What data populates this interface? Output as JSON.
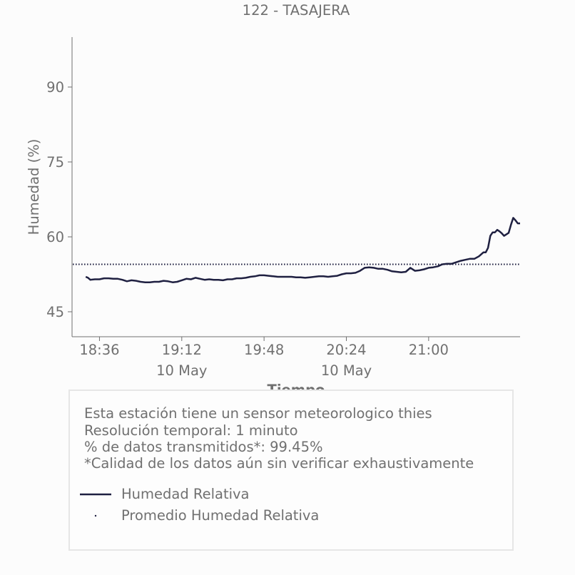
{
  "chart_data": {
    "type": "line",
    "title": "122 - TASAJERA",
    "xlabel": "Tiempo",
    "ylabel": "Humedad (%)",
    "ylim": [
      40,
      100
    ],
    "xlim": [
      "18:24",
      "21:40"
    ],
    "yticks": [
      45,
      60,
      75,
      90
    ],
    "xticks": [
      {
        "t": "18:36",
        "label": "18:36",
        "date": ""
      },
      {
        "t": "19:12",
        "label": "19:12",
        "date": "10 May"
      },
      {
        "t": "19:48",
        "label": "19:48",
        "date": ""
      },
      {
        "t": "20:24",
        "label": "20:24",
        "date": "10 May"
      },
      {
        "t": "21:00",
        "label": "21:00",
        "date": ""
      }
    ],
    "series": [
      {
        "name": "Humedad Relativa",
        "color": "#1f2041",
        "style": "solid",
        "points": [
          [
            "18:30",
            52.0
          ],
          [
            "18:31",
            51.8
          ],
          [
            "18:32",
            51.4
          ],
          [
            "18:34",
            51.5
          ],
          [
            "18:36",
            51.5
          ],
          [
            "18:38",
            51.7
          ],
          [
            "18:40",
            51.7
          ],
          [
            "18:42",
            51.6
          ],
          [
            "18:44",
            51.6
          ],
          [
            "18:46",
            51.4
          ],
          [
            "18:48",
            51.1
          ],
          [
            "18:50",
            51.3
          ],
          [
            "18:52",
            51.2
          ],
          [
            "18:54",
            51.0
          ],
          [
            "18:56",
            50.9
          ],
          [
            "18:58",
            50.9
          ],
          [
            "19:00",
            51.0
          ],
          [
            "19:02",
            51.0
          ],
          [
            "19:04",
            51.2
          ],
          [
            "19:06",
            51.1
          ],
          [
            "19:08",
            50.9
          ],
          [
            "19:10",
            51.0
          ],
          [
            "19:12",
            51.3
          ],
          [
            "19:14",
            51.6
          ],
          [
            "19:16",
            51.5
          ],
          [
            "19:18",
            51.8
          ],
          [
            "19:20",
            51.6
          ],
          [
            "19:22",
            51.4
          ],
          [
            "19:24",
            51.5
          ],
          [
            "19:26",
            51.4
          ],
          [
            "19:28",
            51.4
          ],
          [
            "19:30",
            51.3
          ],
          [
            "19:32",
            51.5
          ],
          [
            "19:34",
            51.5
          ],
          [
            "19:36",
            51.7
          ],
          [
            "19:38",
            51.7
          ],
          [
            "19:40",
            51.8
          ],
          [
            "19:42",
            52.0
          ],
          [
            "19:44",
            52.1
          ],
          [
            "19:46",
            52.3
          ],
          [
            "19:48",
            52.3
          ],
          [
            "19:50",
            52.2
          ],
          [
            "19:52",
            52.1
          ],
          [
            "19:54",
            52.0
          ],
          [
            "19:56",
            52.0
          ],
          [
            "19:58",
            52.0
          ],
          [
            "20:00",
            52.0
          ],
          [
            "20:02",
            51.9
          ],
          [
            "20:04",
            51.9
          ],
          [
            "20:06",
            51.8
          ],
          [
            "20:08",
            51.9
          ],
          [
            "20:10",
            52.0
          ],
          [
            "20:12",
            52.1
          ],
          [
            "20:14",
            52.1
          ],
          [
            "20:16",
            52.0
          ],
          [
            "20:18",
            52.1
          ],
          [
            "20:20",
            52.2
          ],
          [
            "20:22",
            52.5
          ],
          [
            "20:24",
            52.7
          ],
          [
            "20:26",
            52.7
          ],
          [
            "20:28",
            52.8
          ],
          [
            "20:30",
            53.2
          ],
          [
            "20:32",
            53.8
          ],
          [
            "20:34",
            53.9
          ],
          [
            "20:36",
            53.8
          ],
          [
            "20:38",
            53.6
          ],
          [
            "20:40",
            53.6
          ],
          [
            "20:42",
            53.4
          ],
          [
            "20:44",
            53.1
          ],
          [
            "20:46",
            53.0
          ],
          [
            "20:48",
            52.9
          ],
          [
            "20:50",
            53.0
          ],
          [
            "20:52",
            53.8
          ],
          [
            "20:54",
            53.2
          ],
          [
            "20:56",
            53.3
          ],
          [
            "20:58",
            53.5
          ],
          [
            "21:00",
            53.8
          ],
          [
            "21:02",
            53.9
          ],
          [
            "21:04",
            54.1
          ],
          [
            "21:06",
            54.5
          ],
          [
            "21:08",
            54.6
          ],
          [
            "21:10",
            54.6
          ],
          [
            "21:12",
            54.9
          ],
          [
            "21:14",
            55.2
          ],
          [
            "21:16",
            55.4
          ],
          [
            "21:18",
            55.6
          ],
          [
            "21:20",
            55.6
          ],
          [
            "21:22",
            56.1
          ],
          [
            "21:24",
            56.9
          ],
          [
            "21:25",
            56.9
          ],
          [
            "21:26",
            57.8
          ],
          [
            "21:27",
            60.2
          ],
          [
            "21:28",
            60.9
          ],
          [
            "21:29",
            60.9
          ],
          [
            "21:30",
            61.4
          ],
          [
            "21:31",
            61.1
          ],
          [
            "21:32",
            60.7
          ],
          [
            "21:33",
            60.2
          ],
          [
            "21:35",
            60.8
          ],
          [
            "21:36",
            62.4
          ],
          [
            "21:37",
            63.8
          ],
          [
            "21:38",
            63.3
          ],
          [
            "21:39",
            62.7
          ],
          [
            "21:40",
            62.7
          ]
        ]
      },
      {
        "name": "Promedio Humedad Relativa",
        "color": "#1f2041",
        "style": "dotted",
        "y": 54.5
      }
    ],
    "grid": false,
    "legend_position": "bottom"
  },
  "info": {
    "line1": "Esta estación tiene un sensor meteorologico thies",
    "line2": "Resolución temporal: 1 minuto",
    "line3": "% de datos transmitidos*: 99.45%",
    "line4": "*Calidad de los datos aún sin verificar exhaustivamente"
  }
}
